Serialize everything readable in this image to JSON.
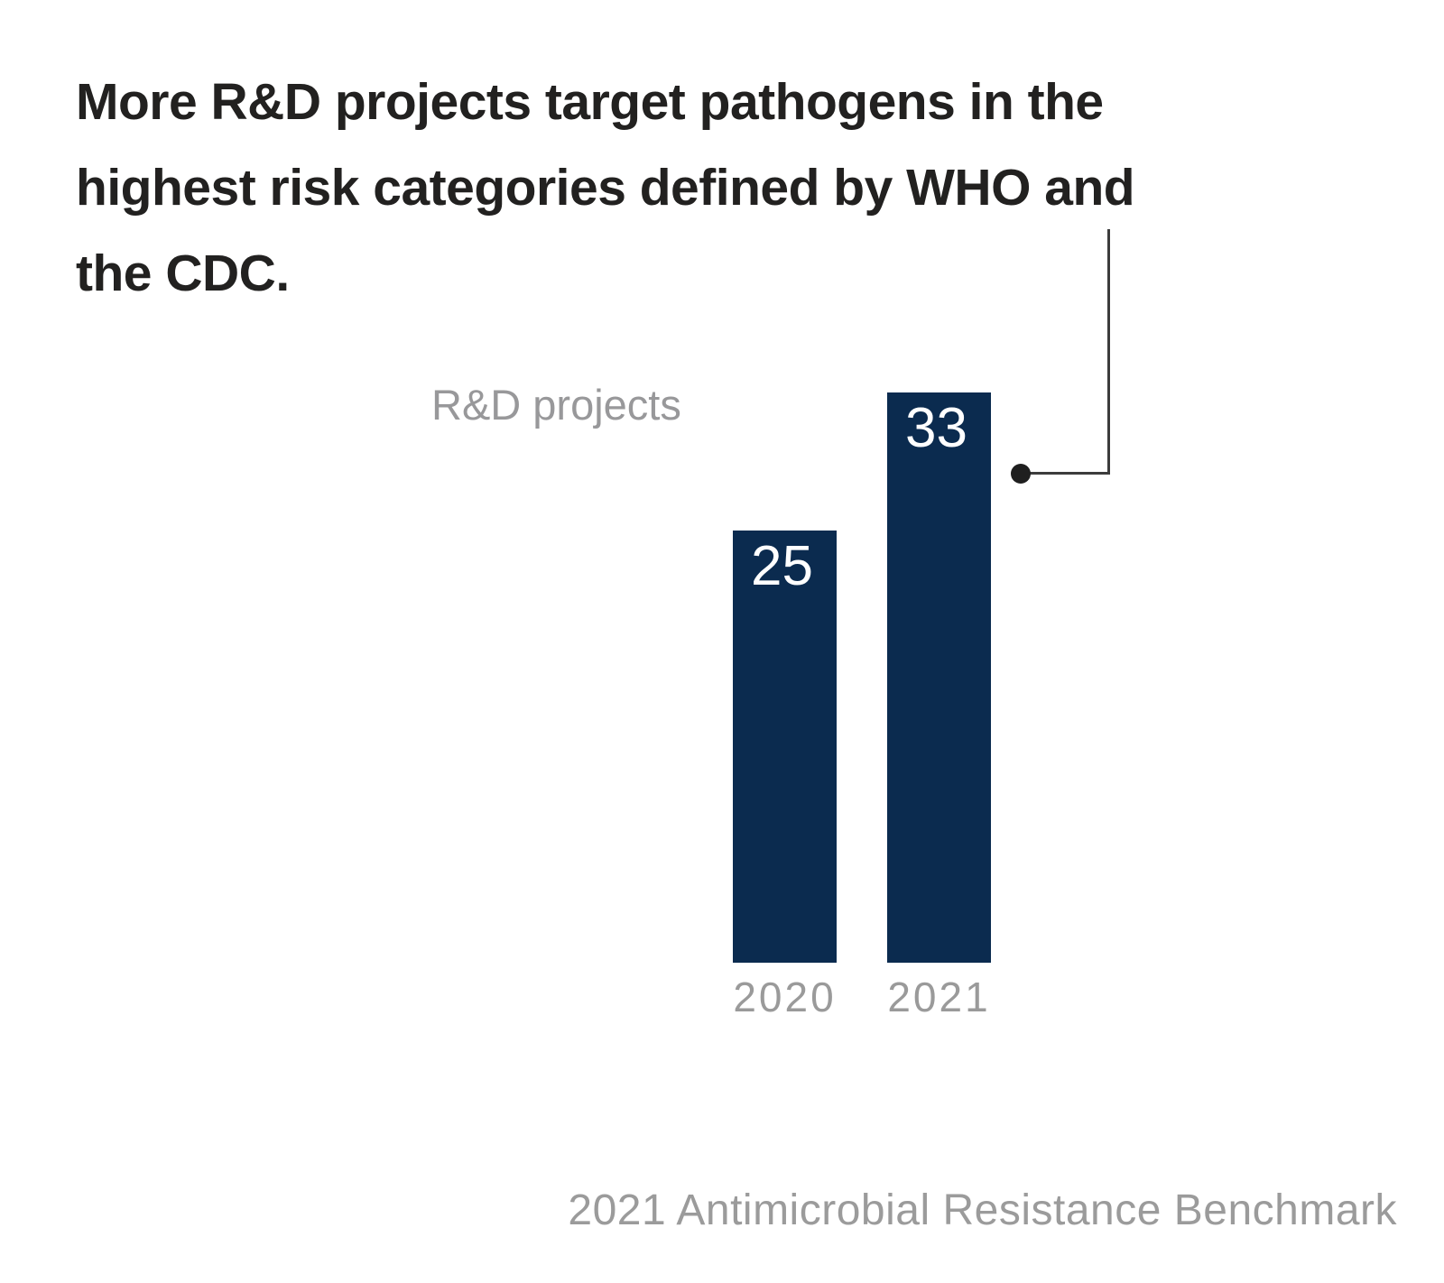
{
  "page": {
    "background": "#ffffff"
  },
  "title": {
    "text": "More R&D projects target pathogens in the highest risk categories defined by WHO and the CDC.",
    "lines": [
      "More R&D projects target pathogens in the",
      "highest risk categories defined by WHO and",
      "the CDC."
    ],
    "color": "#222120"
  },
  "annotation": {
    "target_category": "2021",
    "line_color": "#3c3c3c",
    "dot_color": "#1f1f1f"
  },
  "chart_data": {
    "type": "bar",
    "title": "R&D projects",
    "categories": [
      "2020",
      "2021"
    ],
    "values": [
      25,
      33
    ],
    "value_labels": [
      "25",
      "33"
    ],
    "xlabel": "",
    "ylabel": "",
    "ylim": [
      0,
      33
    ],
    "grid": false,
    "legend": "none",
    "bar_color": "#0b2b4f",
    "value_label_color": "#ffffff",
    "tick_label_color": "#9a9a9a",
    "series_label_color": "#98989a"
  },
  "footer": {
    "text": "2021 Antimicrobial Resistance Benchmark",
    "color": "#9b9b9b"
  }
}
